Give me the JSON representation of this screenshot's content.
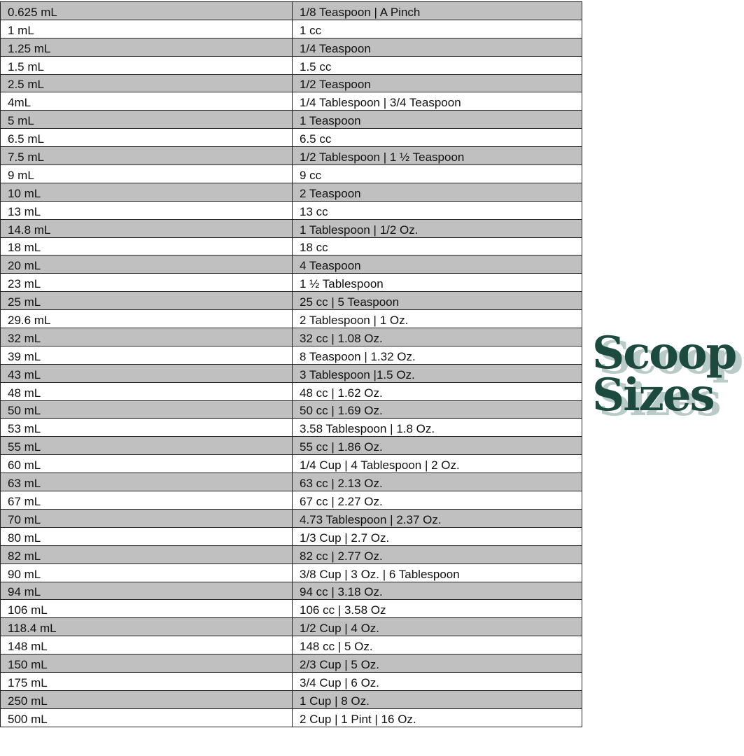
{
  "logo": {
    "line1": "Scoop",
    "line2": "Sizes",
    "color": "#1d4a3f",
    "shadow_color": "#b9cbc6"
  },
  "rows": [
    [
      "0.625 mL",
      "1/8 Teaspoon | A Pinch"
    ],
    [
      "1 mL",
      "1 cc"
    ],
    [
      "1.25 mL",
      "1/4 Teaspoon"
    ],
    [
      "1.5 mL",
      "1.5 cc"
    ],
    [
      "2.5 mL",
      "1/2 Teaspoon"
    ],
    [
      "4mL",
      "1/4 Tablespoon | 3/4 Teaspoon"
    ],
    [
      "5 mL",
      "1 Teaspoon"
    ],
    [
      "6.5 mL",
      "6.5 cc"
    ],
    [
      "7.5 mL",
      "1/2 Tablespoon | 1 ½ Teaspoon"
    ],
    [
      "9 mL",
      "9 cc"
    ],
    [
      "10 mL",
      "2 Teaspoon"
    ],
    [
      "13 mL",
      "13 cc"
    ],
    [
      "14.8 mL",
      "1 Tablespoon | 1/2 Oz."
    ],
    [
      "18 mL",
      "18 cc"
    ],
    [
      "20 mL",
      "4 Teaspoon"
    ],
    [
      "23 mL",
      "1 ½ Tablespoon"
    ],
    [
      "25 mL",
      "25 cc | 5 Teaspoon"
    ],
    [
      "29.6 mL",
      "2 Tablespoon | 1 Oz."
    ],
    [
      "32 mL",
      "32 cc | 1.08 Oz."
    ],
    [
      "39 mL",
      "8 Teaspoon | 1.32 Oz."
    ],
    [
      "43 mL",
      "3 Tablespoon |1.5 Oz."
    ],
    [
      "48 mL",
      "48 cc | 1.62 Oz."
    ],
    [
      "50 mL",
      "50 cc | 1.69 Oz."
    ],
    [
      "53 mL",
      "3.58 Tablespoon | 1.8 Oz."
    ],
    [
      "55 mL",
      "55 cc | 1.86 Oz."
    ],
    [
      "60 mL",
      "1/4 Cup | 4 Tablespoon | 2 Oz."
    ],
    [
      "63 mL",
      "63 cc | 2.13 Oz."
    ],
    [
      "67 mL",
      "67 cc | 2.27 Oz."
    ],
    [
      "70 mL",
      "4.73 Tablespoon | 2.37 Oz."
    ],
    [
      "80 mL",
      "1/3 Cup | 2.7 Oz."
    ],
    [
      "82 mL",
      "82 cc | 2.77 Oz."
    ],
    [
      "90 mL",
      "3/8 Cup | 3 Oz. | 6 Tablespoon"
    ],
    [
      "94 mL",
      "94 cc | 3.18 Oz."
    ],
    [
      "106 mL",
      "106 cc | 3.58 Oz"
    ],
    [
      "118.4 mL",
      "1/2 Cup | 4 Oz."
    ],
    [
      "148 mL",
      "148 cc | 5 Oz."
    ],
    [
      "150 mL",
      "2/3 Cup | 5 Oz."
    ],
    [
      "175 mL",
      "3/4 Cup | 6 Oz."
    ],
    [
      "250 mL",
      "1 Cup | 8 Oz."
    ],
    [
      "500 mL",
      "2 Cup | 1 Pint | 16 Oz."
    ]
  ]
}
